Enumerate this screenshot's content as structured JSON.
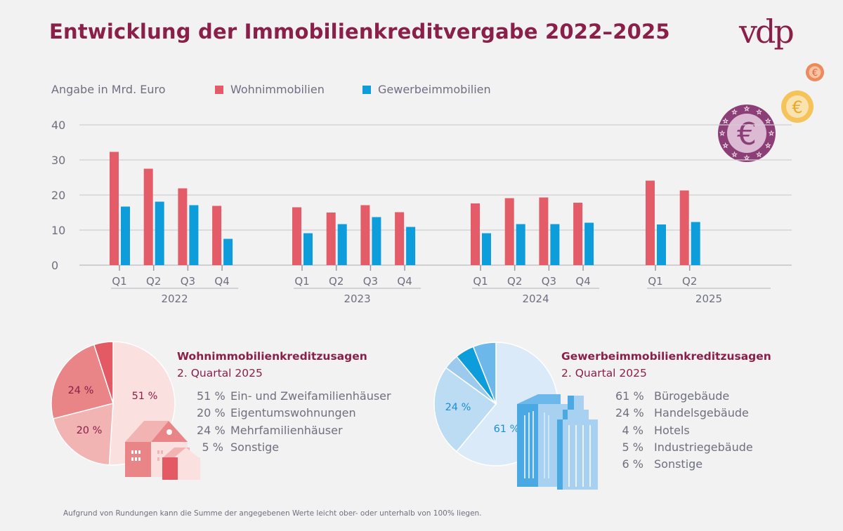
{
  "header": {
    "title": "Entwicklung der Immobilienkreditvergabe 2022–2025",
    "logo": "vdp"
  },
  "legend": {
    "unit_label": "Angabe in Mrd. Euro",
    "items": [
      {
        "label": "Wohnimmobilien",
        "color": "#e45c67"
      },
      {
        "label": "Gewerbeimmobilien",
        "color": "#0e9ddb"
      }
    ]
  },
  "chart_data": [
    {
      "type": "bar",
      "title": "Entwicklung der Immobilienkreditvergabe 2022–2025",
      "ylabel": "Angabe in Mrd. Euro",
      "xlabel": "",
      "ylim": [
        0,
        40
      ],
      "yticks": [
        0,
        10,
        20,
        30,
        40
      ],
      "grid": true,
      "legend_position": "top-left",
      "groups": [
        {
          "label": "2022",
          "categories": [
            "Q1",
            "Q2",
            "Q3",
            "Q4"
          ]
        },
        {
          "label": "2023",
          "categories": [
            "Q1",
            "Q2",
            "Q3",
            "Q4"
          ]
        },
        {
          "label": "2024",
          "categories": [
            "Q1",
            "Q2",
            "Q3",
            "Q4"
          ]
        },
        {
          "label": "2025",
          "categories": [
            "Q1",
            "Q2"
          ]
        }
      ],
      "categories": [
        "2022 Q1",
        "2022 Q2",
        "2022 Q3",
        "2022 Q4",
        "2023 Q1",
        "2023 Q2",
        "2023 Q3",
        "2023 Q4",
        "2024 Q1",
        "2024 Q2",
        "2024 Q3",
        "2024 Q4",
        "2025 Q1",
        "2025 Q2"
      ],
      "series": [
        {
          "name": "Wohnimmobilien",
          "color": "#e45c67",
          "values": [
            32.3,
            27.5,
            21.9,
            16.9,
            16.5,
            15.0,
            17.1,
            15.1,
            17.6,
            19.1,
            19.3,
            17.8,
            24.1,
            21.3
          ]
        },
        {
          "name": "Gewerbeimmobilien",
          "color": "#0e9ddb",
          "values": [
            16.7,
            18.1,
            17.1,
            7.5,
            9.1,
            11.7,
            13.7,
            10.9,
            9.1,
            11.7,
            11.7,
            12.1,
            11.6,
            12.3
          ]
        }
      ]
    },
    {
      "type": "pie",
      "title": "Wohnimmobilienkreditzusagen",
      "subtitle": "2. Quartal 2025",
      "slices": [
        {
          "label": "Ein- und Zweifamilienhäuser",
          "value": 51,
          "pct_label": "51 %",
          "color": "#fbe0e0",
          "text_color": "#8a1f4a",
          "show_label": true
        },
        {
          "label": "Eigentumswohnungen",
          "value": 20,
          "pct_label": "20 %",
          "color": "#f2b3b3",
          "text_color": "#8a1f4a",
          "show_label": true
        },
        {
          "label": "Mehrfamilienhäuser",
          "value": 24,
          "pct_label": "24 %",
          "color": "#e98487",
          "text_color": "#8a1f4a",
          "show_label": true
        },
        {
          "label": "Sonstige",
          "value": 5,
          "pct_label": "5 %",
          "color": "#e35a64",
          "text_color": "#8a1f4a",
          "show_label": false
        }
      ]
    },
    {
      "type": "pie",
      "title": "Gewerbeimmobilienkreditzusagen",
      "subtitle": "2. Quartal 2025",
      "slices": [
        {
          "label": "Bürogebäude",
          "value": 61,
          "pct_label": "61 %",
          "color": "#daeaf8",
          "text_color": "#1a8fd0",
          "show_label": true
        },
        {
          "label": "Handelsgebäude",
          "value": 24,
          "pct_label": "24 %",
          "color": "#bcdcf4",
          "text_color": "#1a8fd0",
          "show_label": true
        },
        {
          "label": "Hotels",
          "value": 4,
          "pct_label": "4 %",
          "color": "#9ccaee",
          "text_color": "#1a8fd0",
          "show_label": false
        },
        {
          "label": "Industriegebäude",
          "value": 5,
          "pct_label": "5 %",
          "color": "#0e9ddb",
          "text_color": "#1a8fd0",
          "show_label": false
        },
        {
          "label": "Sonstige",
          "value": 6,
          "pct_label": "6 %",
          "color": "#6db8ea",
          "text_color": "#1a8fd0",
          "show_label": false
        }
      ]
    }
  ],
  "pies": {
    "residential": {
      "title": "Wohnimmobilienkreditzusagen",
      "subtitle": "2. Quartal 2025",
      "list": [
        {
          "pct": "51 %",
          "label": "Ein- und Zweifamilienhäuser"
        },
        {
          "pct": "20 %",
          "label": "Eigentumswohnungen"
        },
        {
          "pct": "24 %",
          "label": "Mehrfamilienhäuser"
        },
        {
          "pct": "5 %",
          "label": "Sonstige"
        }
      ]
    },
    "commercial": {
      "title": "Gewerbeimmobilienkreditzusagen",
      "subtitle": "2. Quartal 2025",
      "list": [
        {
          "pct": "61 %",
          "label": "Bürogebäude"
        },
        {
          "pct": "24 %",
          "label": "Handelsgebäude"
        },
        {
          "pct": "4 %",
          "label": "Hotels"
        },
        {
          "pct": "5 %",
          "label": "Industriegebäude"
        },
        {
          "pct": "6 %",
          "label": "Sonstige"
        }
      ]
    }
  },
  "decor": {
    "coin_symbol": "€"
  },
  "footnote": "Aufgrund von Rundungen kann die Summe der angegebenen Werte leicht ober- oder unterhalb von 100% liegen."
}
